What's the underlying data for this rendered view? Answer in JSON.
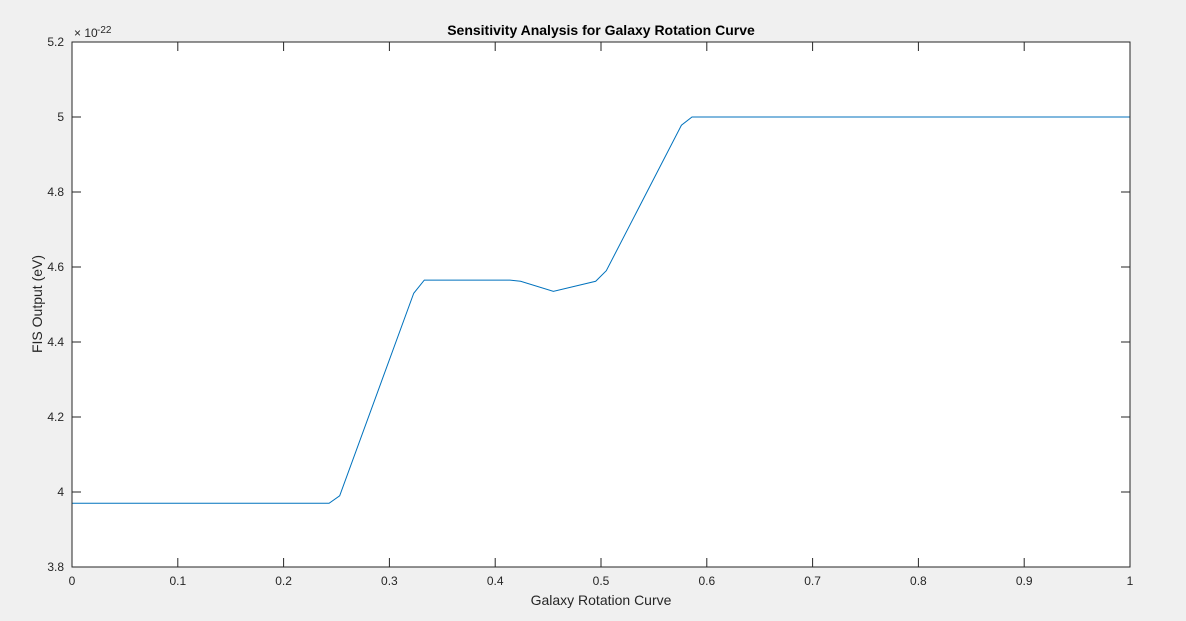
{
  "chart_data": {
    "type": "line",
    "title": "Sensitivity Analysis for Galaxy Rotation Curve",
    "xlabel": "Galaxy Rotation Curve",
    "ylabel": "FIS Output (eV)",
    "y_exponent_label": "× 10",
    "y_exponent": "-22",
    "xlim": [
      0,
      1
    ],
    "ylim": [
      3.8,
      5.2
    ],
    "x_ticks": [
      "0",
      "0.1",
      "0.2",
      "0.3",
      "0.4",
      "0.5",
      "0.6",
      "0.7",
      "0.8",
      "0.9",
      "1"
    ],
    "y_ticks": [
      "3.8",
      "4",
      "4.2",
      "4.4",
      "4.6",
      "4.8",
      "5",
      "5.2"
    ],
    "grid": false,
    "line_color": "#0072bd",
    "series": [
      {
        "x": [
          0,
          0.243,
          0.253,
          0.323,
          0.333,
          0.414,
          0.424,
          0.455,
          0.495,
          0.505,
          0.576,
          0.586,
          1.0
        ],
        "y": [
          3.97,
          3.97,
          3.99,
          4.53,
          4.565,
          4.565,
          4.562,
          4.535,
          4.562,
          4.59,
          4.978,
          5.0,
          5.0
        ]
      }
    ]
  }
}
